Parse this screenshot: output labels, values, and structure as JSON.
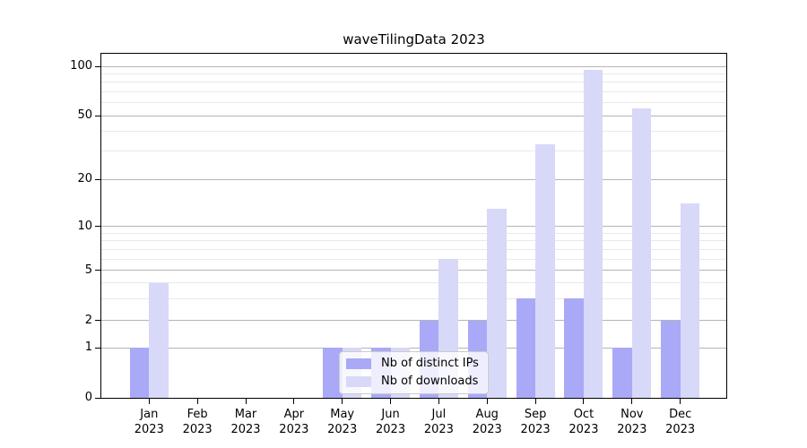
{
  "figure": {
    "background": "#ffffff"
  },
  "chart_data": {
    "type": "bar",
    "title": "waveTilingData 2023",
    "months": [
      "Jan",
      "Feb",
      "Mar",
      "Apr",
      "May",
      "Jun",
      "Jul",
      "Aug",
      "Sep",
      "Oct",
      "Nov",
      "Dec"
    ],
    "x_year_label": "2023",
    "series": [
      {
        "name": "Nb of distinct IPs",
        "color": "#a9a9f8",
        "values": [
          1,
          0,
          0,
          0,
          1,
          1,
          2,
          2,
          3,
          3,
          1,
          2
        ]
      },
      {
        "name": "Nb of downloads",
        "color": "#d8d8f9",
        "values": [
          4,
          0,
          0,
          0,
          1,
          1,
          6,
          13,
          33,
          95,
          55,
          14
        ]
      }
    ],
    "y_major_ticks": [
      0,
      1,
      2,
      5,
      10,
      20,
      50,
      100
    ],
    "y_minor_gridlines": [
      3,
      4,
      6,
      7,
      8,
      9,
      30,
      40,
      60,
      70,
      80,
      90
    ],
    "y_scale": "log-like, linear between 0 and 1",
    "ylim": [
      0,
      120
    ],
    "grid": true,
    "legend_position": "lower center",
    "colors": {
      "major_grid": "#b4b4b4",
      "minor_grid": "#e9e9e9",
      "spine": "#000000",
      "tick_text": "#000000"
    }
  }
}
